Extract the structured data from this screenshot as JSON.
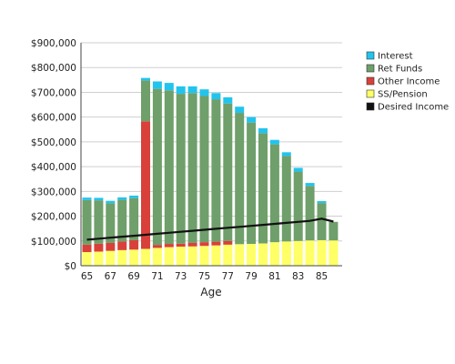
{
  "chart_data": {
    "type": "bar",
    "stacked": true,
    "xlabel": "Age",
    "ylabel": "",
    "ylim": [
      0,
      900000
    ],
    "y_ticks": [
      "$0",
      "$100,000",
      "$200,000",
      "$300,000",
      "$400,000",
      "$500,000",
      "$600,000",
      "$700,000",
      "$800,000",
      "$900,000"
    ],
    "x_tick_labels": [
      "65",
      "67",
      "69",
      "71",
      "73",
      "75",
      "77",
      "79",
      "81",
      "83",
      "85"
    ],
    "categories": [
      65,
      66,
      67,
      68,
      69,
      70,
      71,
      72,
      73,
      74,
      75,
      76,
      77,
      78,
      79,
      80,
      81,
      82,
      83,
      84,
      85,
      86
    ],
    "series": [
      {
        "name": "SS/Pension",
        "color": "#ffff66",
        "values": [
          55000,
          57000,
          60000,
          63000,
          65000,
          68000,
          72000,
          75000,
          77000,
          78000,
          80000,
          82000,
          85000,
          87000,
          88000,
          90000,
          95000,
          98000,
          100000,
          102000,
          103000,
          102000
        ]
      },
      {
        "name": "Other Income",
        "color": "#d9403a",
        "values": [
          30000,
          32000,
          32000,
          35000,
          38000,
          515000,
          12000,
          13000,
          12000,
          14000,
          15000,
          15000,
          15000,
          0,
          0,
          0,
          0,
          0,
          0,
          0,
          0,
          0
        ]
      },
      {
        "name": "Ret Funds",
        "color": "#6f9f6a",
        "values": [
          180000,
          175000,
          160000,
          168000,
          170000,
          165000,
          630000,
          620000,
          605000,
          605000,
          590000,
          575000,
          555000,
          530000,
          490000,
          445000,
          395000,
          345000,
          280000,
          220000,
          150000,
          75000
        ]
      },
      {
        "name": "Interest",
        "color": "#22c4ee",
        "values": [
          10000,
          10000,
          10000,
          10000,
          10000,
          10000,
          30000,
          30000,
          30000,
          27000,
          27000,
          25000,
          25000,
          25000,
          22000,
          20000,
          18000,
          15000,
          15000,
          12000,
          8000,
          0
        ]
      }
    ],
    "line": {
      "name": "Desired Income",
      "color": "#111111",
      "values": [
        105000,
        109000,
        113000,
        117000,
        121000,
        125000,
        129000,
        133000,
        137000,
        141000,
        145000,
        149000,
        153000,
        157000,
        161000,
        165000,
        169000,
        173000,
        177000,
        181000,
        190000,
        178000
      ]
    },
    "legend": [
      {
        "label": "Interest",
        "color": "#22c4ee"
      },
      {
        "label": "Ret Funds",
        "color": "#6f9f6a"
      },
      {
        "label": "Other Income",
        "color": "#d9403a"
      },
      {
        "label": "SS/Pension",
        "color": "#ffff66"
      },
      {
        "label": "Desired Income",
        "color": "#111111"
      }
    ],
    "legend_position": "right",
    "grid": true
  }
}
